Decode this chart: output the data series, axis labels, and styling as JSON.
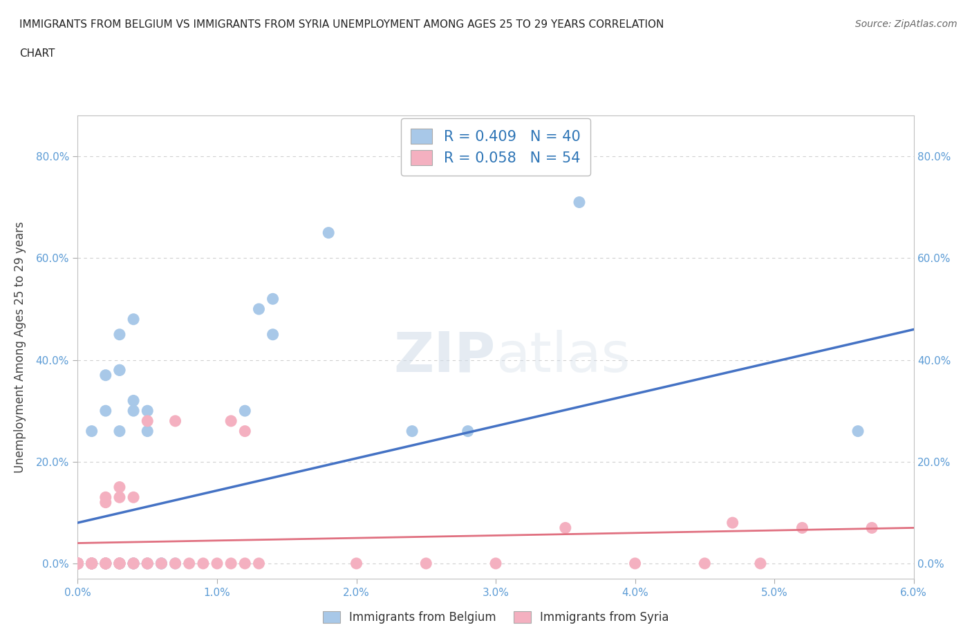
{
  "title_line1": "IMMIGRANTS FROM BELGIUM VS IMMIGRANTS FROM SYRIA UNEMPLOYMENT AMONG AGES 25 TO 29 YEARS CORRELATION",
  "title_line2": "CHART",
  "source": "Source: ZipAtlas.com",
  "ylabel": "Unemployment Among Ages 25 to 29 years",
  "xmin": 0.0,
  "xmax": 0.06,
  "ymin": -0.03,
  "ymax": 0.88,
  "yticks": [
    0.0,
    0.2,
    0.4,
    0.6,
    0.8
  ],
  "ytick_labels": [
    "0.0%",
    "20.0%",
    "40.0%",
    "60.0%",
    "80.0%"
  ],
  "xticks": [
    0.0,
    0.01,
    0.02,
    0.03,
    0.04,
    0.05,
    0.06
  ],
  "xtick_labels": [
    "0.0%",
    "1.0%",
    "2.0%",
    "3.0%",
    "4.0%",
    "5.0%",
    "6.0%"
  ],
  "belgium_color": "#a8c8e8",
  "syria_color": "#f4b0c0",
  "belgium_line_color": "#4472c4",
  "syria_line_color": "#e07080",
  "dash_line_color": "#aaaaaa",
  "belgium_R": 0.409,
  "belgium_N": 40,
  "syria_R": 0.058,
  "syria_N": 54,
  "legend_color": "#2e75b6",
  "watermark_color": "#d0dce8",
  "tick_color": "#5b9bd5",
  "grid_color": "#d0d0d0",
  "belgium_points": [
    [
      0.0,
      0.0
    ],
    [
      0.0,
      0.0
    ],
    [
      0.0,
      0.0
    ],
    [
      0.0,
      0.0
    ],
    [
      0.0,
      0.0
    ],
    [
      0.001,
      0.0
    ],
    [
      0.001,
      0.0
    ],
    [
      0.001,
      0.0
    ],
    [
      0.001,
      0.0
    ],
    [
      0.002,
      0.0
    ],
    [
      0.002,
      0.0
    ],
    [
      0.003,
      0.0
    ],
    [
      0.003,
      0.0
    ],
    [
      0.004,
      0.0
    ],
    [
      0.004,
      0.0
    ],
    [
      0.005,
      0.0
    ],
    [
      0.006,
      0.0
    ],
    [
      0.006,
      0.0
    ],
    [
      0.007,
      0.0
    ],
    [
      0.001,
      0.26
    ],
    [
      0.002,
      0.37
    ],
    [
      0.002,
      0.3
    ],
    [
      0.003,
      0.38
    ],
    [
      0.003,
      0.45
    ],
    [
      0.004,
      0.32
    ],
    [
      0.004,
      0.3
    ],
    [
      0.003,
      0.26
    ],
    [
      0.004,
      0.48
    ],
    [
      0.005,
      0.26
    ],
    [
      0.005,
      0.3
    ],
    [
      0.003,
      0.38
    ],
    [
      0.012,
      0.3
    ],
    [
      0.013,
      0.5
    ],
    [
      0.014,
      0.52
    ],
    [
      0.014,
      0.45
    ],
    [
      0.018,
      0.65
    ],
    [
      0.024,
      0.26
    ],
    [
      0.028,
      0.26
    ],
    [
      0.036,
      0.71
    ],
    [
      0.056,
      0.26
    ]
  ],
  "syria_points": [
    [
      0.0,
      0.0
    ],
    [
      0.0,
      0.0
    ],
    [
      0.0,
      0.0
    ],
    [
      0.0,
      0.0
    ],
    [
      0.0,
      0.0
    ],
    [
      0.0,
      0.0
    ],
    [
      0.0,
      0.0
    ],
    [
      0.0,
      0.0
    ],
    [
      0.0,
      0.0
    ],
    [
      0.0,
      0.0
    ],
    [
      0.001,
      0.0
    ],
    [
      0.001,
      0.0
    ],
    [
      0.001,
      0.0
    ],
    [
      0.001,
      0.0
    ],
    [
      0.001,
      0.0
    ],
    [
      0.002,
      0.0
    ],
    [
      0.002,
      0.0
    ],
    [
      0.002,
      0.0
    ],
    [
      0.002,
      0.0
    ],
    [
      0.003,
      0.0
    ],
    [
      0.003,
      0.0
    ],
    [
      0.003,
      0.0
    ],
    [
      0.003,
      0.0
    ],
    [
      0.004,
      0.0
    ],
    [
      0.004,
      0.0
    ],
    [
      0.005,
      0.0
    ],
    [
      0.005,
      0.0
    ],
    [
      0.006,
      0.0
    ],
    [
      0.007,
      0.0
    ],
    [
      0.008,
      0.0
    ],
    [
      0.009,
      0.0
    ],
    [
      0.01,
      0.0
    ],
    [
      0.011,
      0.0
    ],
    [
      0.012,
      0.0
    ],
    [
      0.013,
      0.0
    ],
    [
      0.002,
      0.13
    ],
    [
      0.002,
      0.12
    ],
    [
      0.003,
      0.15
    ],
    [
      0.003,
      0.13
    ],
    [
      0.004,
      0.13
    ],
    [
      0.005,
      0.28
    ],
    [
      0.007,
      0.28
    ],
    [
      0.011,
      0.28
    ],
    [
      0.012,
      0.26
    ],
    [
      0.02,
      0.0
    ],
    [
      0.025,
      0.0
    ],
    [
      0.03,
      0.0
    ],
    [
      0.035,
      0.07
    ],
    [
      0.04,
      0.0
    ],
    [
      0.045,
      0.0
    ],
    [
      0.047,
      0.08
    ],
    [
      0.049,
      0.0
    ],
    [
      0.052,
      0.07
    ],
    [
      0.057,
      0.07
    ]
  ]
}
